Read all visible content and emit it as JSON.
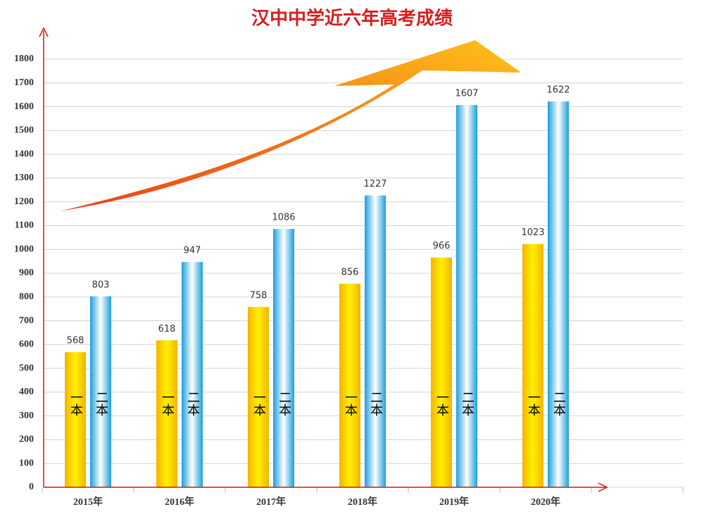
{
  "chart_data": {
    "type": "bar",
    "title": "汉中中学近六年高考成绩",
    "categories": [
      "2015年",
      "2016年",
      "2017年",
      "2018年",
      "2019年",
      "2020年"
    ],
    "series": [
      {
        "name": "一本",
        "color": "#f2b400",
        "values": [
          568,
          618,
          758,
          856,
          966,
          1023
        ]
      },
      {
        "name": "二本",
        "color": "#1a9fdc",
        "values": [
          803,
          947,
          1086,
          1227,
          1607,
          1622
        ]
      }
    ],
    "ylim": [
      0,
      1800
    ],
    "yticks": [
      0,
      100,
      200,
      300,
      400,
      500,
      600,
      700,
      800,
      900,
      1000,
      1100,
      1200,
      1300,
      1400,
      1500,
      1600,
      1700,
      1800
    ],
    "grid": true
  }
}
